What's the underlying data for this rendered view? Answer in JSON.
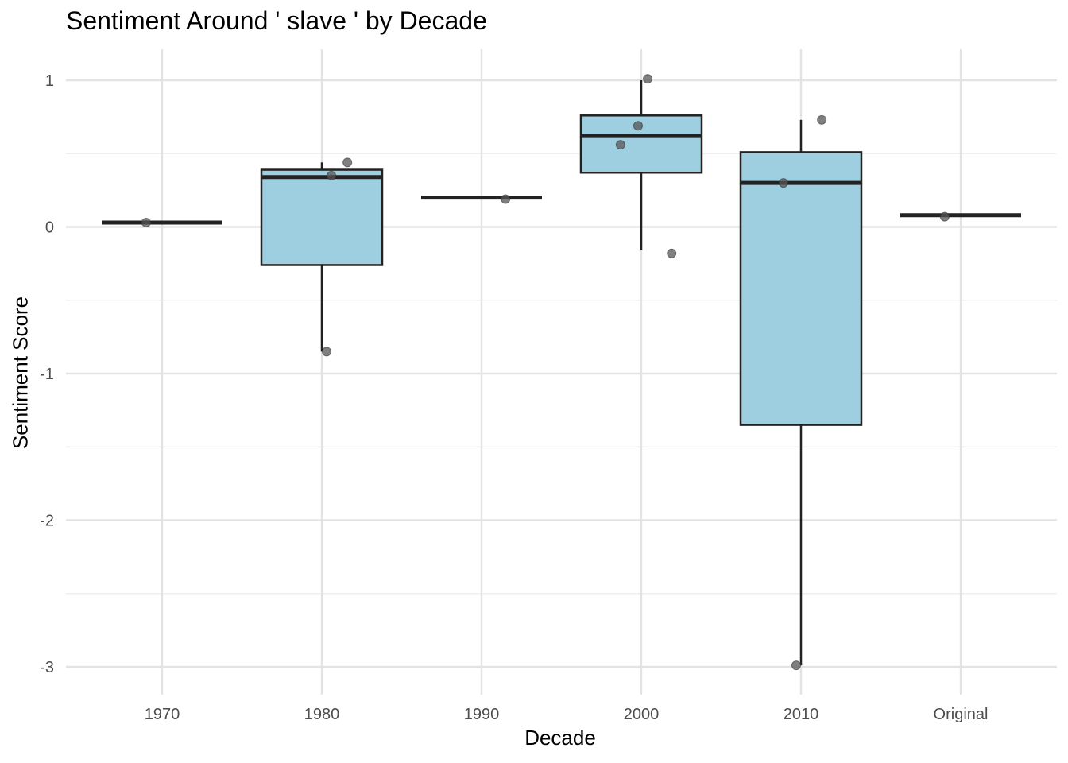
{
  "chart_data": {
    "type": "boxplot",
    "title": "Sentiment Around ' slave ' by Decade",
    "xlabel": "Decade",
    "ylabel": "Sentiment Score",
    "categories": [
      "1970",
      "1980",
      "1990",
      "2000",
      "2010",
      "Original"
    ],
    "ylim": [
      -3.17,
      1.22
    ],
    "yticks": [
      1,
      0,
      -1,
      -2,
      -3
    ],
    "ytick_labels": [
      "1",
      "0",
      "-1",
      "-2",
      "-3"
    ],
    "grid": true,
    "legend": "none",
    "box_fill": "#9ecfe0",
    "box_stroke": "#222222",
    "point_color": "#555555",
    "boxes": [
      {
        "category": "1970",
        "q1": 0.03,
        "median": 0.03,
        "q3": 0.03,
        "whisker_low": 0.03,
        "whisker_high": 0.03
      },
      {
        "category": "1980",
        "q1": -0.26,
        "median": 0.34,
        "q3": 0.39,
        "whisker_low": -0.85,
        "whisker_high": 0.44
      },
      {
        "category": "1990",
        "q1": 0.2,
        "median": 0.2,
        "q3": 0.2,
        "whisker_low": 0.2,
        "whisker_high": 0.2
      },
      {
        "category": "2000",
        "q1": 0.37,
        "median": 0.62,
        "q3": 0.76,
        "whisker_low": -0.16,
        "whisker_high": 1.0
      },
      {
        "category": "2010",
        "q1": -1.35,
        "median": 0.3,
        "q3": 0.51,
        "whisker_low": -2.99,
        "whisker_high": 0.73
      },
      {
        "category": "Original",
        "q1": 0.08,
        "median": 0.08,
        "q3": 0.08,
        "whisker_low": 0.08,
        "whisker_high": 0.08
      }
    ],
    "points": [
      {
        "category": "1970",
        "jitter": -0.1,
        "y": 0.03
      },
      {
        "category": "1980",
        "jitter": 0.06,
        "y": 0.35
      },
      {
        "category": "1980",
        "jitter": 0.16,
        "y": 0.44
      },
      {
        "category": "1980",
        "jitter": 0.03,
        "y": -0.85
      },
      {
        "category": "1990",
        "jitter": 0.15,
        "y": 0.19
      },
      {
        "category": "2000",
        "jitter": 0.04,
        "y": 1.01
      },
      {
        "category": "2000",
        "jitter": -0.02,
        "y": 0.69
      },
      {
        "category": "2000",
        "jitter": -0.13,
        "y": 0.56
      },
      {
        "category": "2000",
        "jitter": 0.19,
        "y": -0.18
      },
      {
        "category": "2010",
        "jitter": 0.13,
        "y": 0.73
      },
      {
        "category": "2010",
        "jitter": -0.11,
        "y": 0.3
      },
      {
        "category": "2010",
        "jitter": -0.03,
        "y": -2.99
      },
      {
        "category": "Original",
        "jitter": -0.1,
        "y": 0.07
      }
    ]
  }
}
